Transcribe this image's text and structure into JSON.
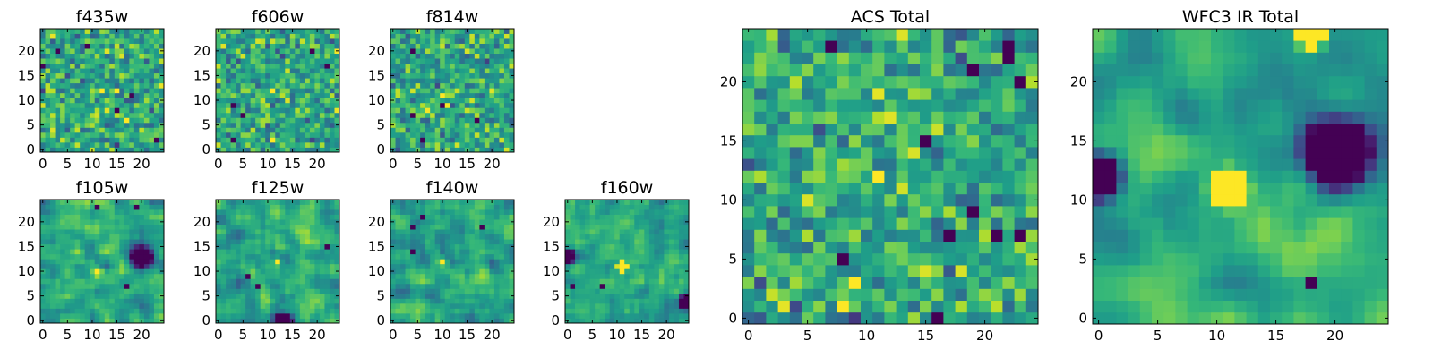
{
  "chart_data": [
    {
      "type": "heatmap",
      "title": "f435w",
      "xlim": [
        0,
        25
      ],
      "ylim": [
        0,
        25
      ],
      "xticks": [
        0,
        5,
        10,
        15,
        20
      ],
      "yticks": [
        0,
        5,
        10,
        15,
        20
      ],
      "xtick_labels": [
        "0",
        "5",
        "10",
        "15",
        "20"
      ],
      "ytick_labels": [
        "0",
        "5",
        "10",
        "15",
        "20"
      ],
      "seed": 11,
      "noise": 0.95,
      "smooth": 0,
      "blobs": [
        [
          12,
          12,
          6,
          0.15
        ]
      ],
      "holes": 6
    },
    {
      "type": "heatmap",
      "title": "f606w",
      "xlim": [
        0,
        25
      ],
      "ylim": [
        0,
        25
      ],
      "xticks": [
        0,
        5,
        10,
        15,
        20
      ],
      "yticks": [
        0,
        5,
        10,
        15,
        20
      ],
      "xtick_labels": [
        "0",
        "5",
        "10",
        "15",
        "20"
      ],
      "ytick_labels": [
        "0",
        "5",
        "10",
        "15",
        "20"
      ],
      "seed": 23,
      "noise": 0.9,
      "smooth": 0,
      "blobs": [
        [
          11,
          12,
          6,
          0.25
        ]
      ],
      "holes": 5
    },
    {
      "type": "heatmap",
      "title": "f814w",
      "xlim": [
        0,
        25
      ],
      "ylim": [
        0,
        25
      ],
      "xticks": [
        0,
        5,
        10,
        15,
        20
      ],
      "yticks": [
        0,
        5,
        10,
        15,
        20
      ],
      "xtick_labels": [
        "0",
        "5",
        "10",
        "15",
        "20"
      ],
      "ytick_labels": [
        "0",
        "5",
        "10",
        "15",
        "20"
      ],
      "seed": 37,
      "noise": 0.9,
      "smooth": 0,
      "blobs": [
        [
          10,
          11,
          5,
          0.3
        ]
      ],
      "holes": 5
    },
    {
      "type": "heatmap",
      "title": "f105w",
      "xlim": [
        0,
        25
      ],
      "ylim": [
        0,
        25
      ],
      "xticks": [
        0,
        5,
        10,
        15,
        20
      ],
      "yticks": [
        0,
        5,
        10,
        15,
        20
      ],
      "xtick_labels": [
        "0",
        "5",
        "10",
        "15",
        "20"
      ],
      "ytick_labels": [
        "0",
        "5",
        "10",
        "15",
        "20"
      ],
      "seed": 41,
      "noise": 0.75,
      "smooth": 1,
      "blobs": [
        [
          11,
          10,
          6,
          0.35
        ],
        [
          20,
          13,
          -1.6,
          1.4
        ]
      ],
      "holes": 3
    },
    {
      "type": "heatmap",
      "title": "f125w",
      "xlim": [
        0,
        25
      ],
      "ylim": [
        0,
        25
      ],
      "xticks": [
        0,
        5,
        10,
        15,
        20
      ],
      "yticks": [
        0,
        5,
        10,
        15,
        20
      ],
      "xtick_labels": [
        "0",
        "5",
        "10",
        "15",
        "20"
      ],
      "ytick_labels": [
        "0",
        "5",
        "10",
        "15",
        "20"
      ],
      "seed": 53,
      "noise": 0.8,
      "smooth": 1,
      "blobs": [
        [
          12,
          12,
          6,
          0.35
        ],
        [
          13,
          0,
          -1.6,
          1.0
        ]
      ],
      "holes": 3
    },
    {
      "type": "heatmap",
      "title": "f140w",
      "xlim": [
        0,
        25
      ],
      "ylim": [
        0,
        25
      ],
      "xticks": [
        0,
        5,
        10,
        15,
        20
      ],
      "yticks": [
        0,
        5,
        10,
        15,
        20
      ],
      "xtick_labels": [
        "0",
        "5",
        "10",
        "15",
        "20"
      ],
      "ytick_labels": [
        "0",
        "5",
        "10",
        "15",
        "20"
      ],
      "seed": 67,
      "noise": 0.8,
      "smooth": 1,
      "blobs": [
        [
          10,
          12,
          6,
          0.35
        ]
      ],
      "holes": 4
    },
    {
      "type": "heatmap",
      "title": "f160w",
      "xlim": [
        0,
        25
      ],
      "ylim": [
        0,
        25
      ],
      "xticks": [
        0,
        5,
        10,
        15,
        20
      ],
      "yticks": [
        0,
        5,
        10,
        15,
        20
      ],
      "xtick_labels": [
        "0",
        "5",
        "10",
        "15",
        "20"
      ],
      "ytick_labels": [
        "0",
        "5",
        "10",
        "15",
        "20"
      ],
      "seed": 79,
      "noise": 0.7,
      "smooth": 1,
      "blobs": [
        [
          11,
          11,
          5,
          0.45
        ],
        [
          0,
          13,
          -1.5,
          1.0
        ],
        [
          24,
          4,
          -1.5,
          1.0
        ]
      ],
      "holes": 2
    },
    {
      "type": "heatmap",
      "title": "ACS Total",
      "xlim": [
        0,
        25
      ],
      "ylim": [
        0,
        25
      ],
      "xticks": [
        0,
        5,
        10,
        15,
        20
      ],
      "yticks": [
        0,
        5,
        10,
        15,
        20
      ],
      "xtick_labels": [
        "0",
        "5",
        "10",
        "15",
        "20"
      ],
      "ytick_labels": [
        "0",
        "5",
        "10",
        "15",
        "20"
      ],
      "seed": 97,
      "noise": 0.9,
      "smooth": 0,
      "blobs": [
        [
          11,
          12,
          6,
          0.35
        ]
      ],
      "holes": 12
    },
    {
      "type": "heatmap",
      "title": "WFC3 IR Total",
      "xlim": [
        0,
        25
      ],
      "ylim": [
        0,
        25
      ],
      "xticks": [
        0,
        5,
        10,
        15,
        20
      ],
      "yticks": [
        0,
        5,
        10,
        15,
        20
      ],
      "xtick_labels": [
        "0",
        "5",
        "10",
        "15",
        "20"
      ],
      "ytick_labels": [
        "0",
        "5",
        "10",
        "15",
        "20"
      ],
      "seed": 103,
      "noise": 0.55,
      "smooth": 2,
      "blobs": [
        [
          11,
          11,
          5,
          0.75
        ],
        [
          20,
          14,
          -2.2,
          1.6
        ],
        [
          0,
          12,
          -1.8,
          1.2
        ],
        [
          18,
          24,
          3,
          0.6
        ]
      ],
      "holes": 1
    }
  ],
  "colors": {
    "colormap": "viridis",
    "background": "#ffffff",
    "axes": "#000000"
  }
}
